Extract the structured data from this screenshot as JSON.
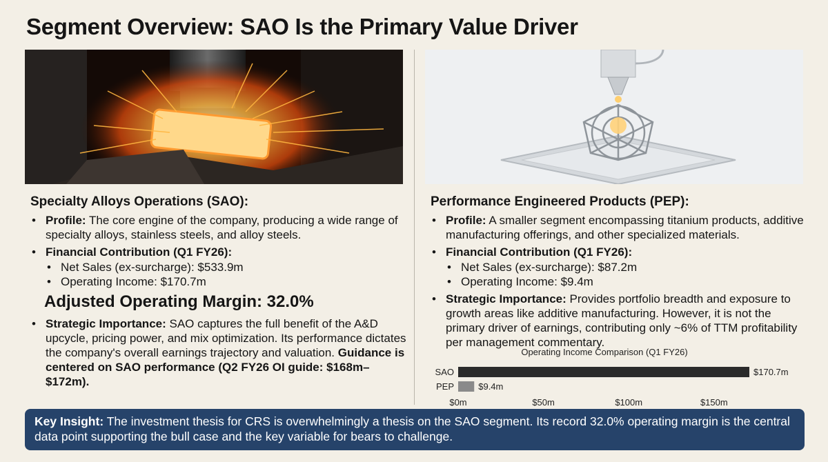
{
  "title": "Segment Overview: SAO Is the Primary Value Driver",
  "sao": {
    "heading": "Specialty Alloys Operations (SAO):",
    "profile_label": "Profile:",
    "profile_text": "The core engine of the company, producing a wide range of specialty alloys, stainless steels, and alloy steels.",
    "fin_label": "Financial Contribution (Q1 FY26):",
    "net_sales": "Net Sales (ex-surcharge): $533.9m",
    "op_income": "Operating Income: $170.7m",
    "margin_callout": "Adjusted Operating Margin: 32.0%",
    "strategic_label": "Strategic Importance:",
    "strategic_text": "SAO captures the full benefit of the A&D upcycle, pricing power, and mix optimization. Its performance dictates the company's overall earnings trajectory and valuation.",
    "guidance_text": "Guidance is centered on SAO performance (Q2 FY26 OI guide: $168m–$172m)."
  },
  "pep": {
    "heading": "Performance Engineered Products (PEP):",
    "profile_label": "Profile:",
    "profile_text": "A smaller segment encompassing titanium products, additive manufacturing offerings, and other specialized materials.",
    "fin_label": "Financial Contribution (Q1 FY26):",
    "net_sales": "Net Sales (ex-surcharge): $87.2m",
    "op_income": "Operating Income: $9.4m",
    "strategic_label": "Strategic Importance:",
    "strategic_text": "Provides portfolio breadth and exposure to growth areas like additive manufacturing. However, it is not the primary driver of earnings, contributing only ~6% of TTM profitability per management commentary."
  },
  "chart_data": {
    "type": "bar",
    "orientation": "horizontal",
    "title": "Operating Income Comparison (Q1 FY26)",
    "categories": [
      "SAO",
      "PEP"
    ],
    "values": [
      170.7,
      9.4
    ],
    "value_labels": [
      "$170.7m",
      "$9.4m"
    ],
    "xlim": [
      0,
      170.7
    ],
    "xticks": [
      0,
      50,
      100,
      150
    ],
    "xtick_labels": [
      "$0m",
      "$50m",
      "$100m",
      "$150m"
    ],
    "colors": [
      "#2b2b2b",
      "#8a8a8a"
    ],
    "grid": false
  },
  "insight": {
    "label": "Key Insight:",
    "text": "The investment thesis for CRS is overwhelmingly a thesis on the SAO segment. Its record 32.0% operating margin is the central data point supporting the bull case and the key variable for bears to challenge."
  },
  "colors": {
    "background": "#f3efe6",
    "insight_bg": "#26436a",
    "insight_text": "#ffffff"
  }
}
